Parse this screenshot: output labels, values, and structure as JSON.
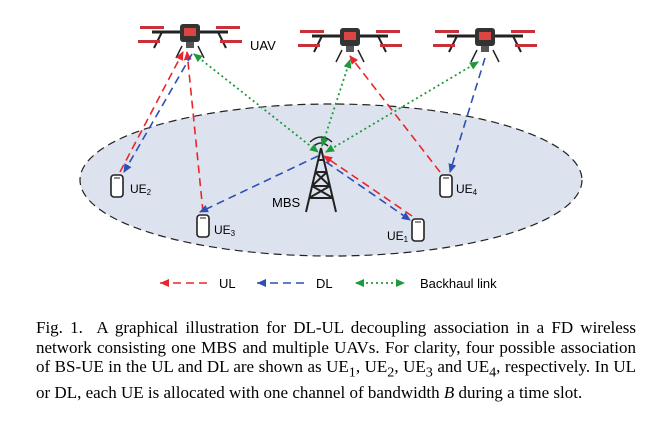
{
  "figure": {
    "uav_label": "UAV",
    "mbs_label": "MBS",
    "ue_labels": [
      {
        "base": "UE",
        "sub": "2"
      },
      {
        "base": "UE",
        "sub": "3"
      },
      {
        "base": "UE",
        "sub": "1"
      },
      {
        "base": "UE",
        "sub": "4"
      }
    ],
    "legend": {
      "ul": "UL",
      "dl": "DL",
      "backhaul": "Backhaul link"
    },
    "colors": {
      "ul": "#e8272d",
      "dl": "#2e4fb5",
      "backhaul": "#1f9a3a",
      "cell_fill": "#dde3ee"
    }
  },
  "caption": {
    "prefix": "Fig. 1.",
    "p1": "A graphical illustration for DL-UL decoupling association in a FD wireless network consisting one MBS and multiple UAVs. For clarity, four possible association of BS-UE in the UL and DL are shown as UE",
    "s1": "1",
    "p2": ", UE",
    "s2": "2",
    "p3": ", UE",
    "s3": "3",
    "p4": " and UE",
    "s4": "4",
    "p5": ", respectively. In UL or DL, each UE is allocated with one channel of bandwidth ",
    "var": "B",
    "p6": " during a time slot."
  }
}
